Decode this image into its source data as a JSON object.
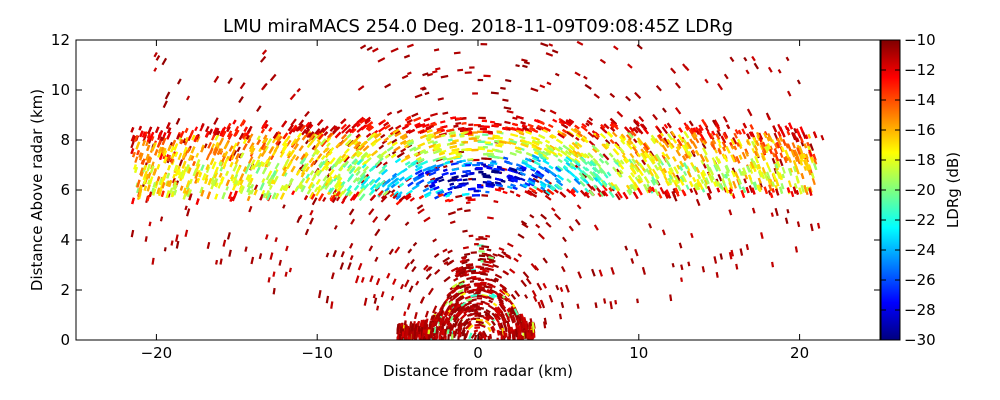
{
  "chart_data": {
    "type": "heatmap",
    "title": "LMU miraMACS 254.0 Deg. 2018-11-09T09:08:45Z  LDRg",
    "xlabel": "Distance from radar (km)",
    "ylabel": "Distance Above radar  (km)",
    "xlim": [
      -25,
      25
    ],
    "ylim": [
      0,
      12
    ],
    "x_ticks": [
      -20,
      -10,
      0,
      10,
      20
    ],
    "x_tick_labels": [
      "−20",
      "−10",
      "0",
      "10",
      "20"
    ],
    "y_ticks": [
      0,
      2,
      4,
      6,
      8,
      10,
      12
    ],
    "y_tick_labels": [
      "0",
      "2",
      "4",
      "6",
      "8",
      "10",
      "12"
    ],
    "grid": false,
    "colorbar": {
      "label": "LDRg (dB)",
      "range": [
        -30,
        -10
      ],
      "ticks": [
        -30,
        -28,
        -26,
        -24,
        -22,
        -20,
        -18,
        -16,
        -14,
        -12,
        -10
      ],
      "tick_labels": [
        "−30",
        "−28",
        "−26",
        "−24",
        "−22",
        "−20",
        "−18",
        "−16",
        "−14",
        "−12",
        "−10"
      ],
      "colormap": "jet"
    },
    "cloud_layer": {
      "x_range_km": [
        -21.5,
        21
      ],
      "base_km": [
        5.5,
        6.0
      ],
      "top_km": [
        8.2,
        8.8
      ],
      "core_ldr_db": -28,
      "edge_ldr_db": -11
    },
    "low_level_clutter": {
      "x_range_km": [
        -5,
        3.5
      ],
      "height_range_km": [
        0,
        3.5
      ],
      "ldr_db": -11
    }
  }
}
